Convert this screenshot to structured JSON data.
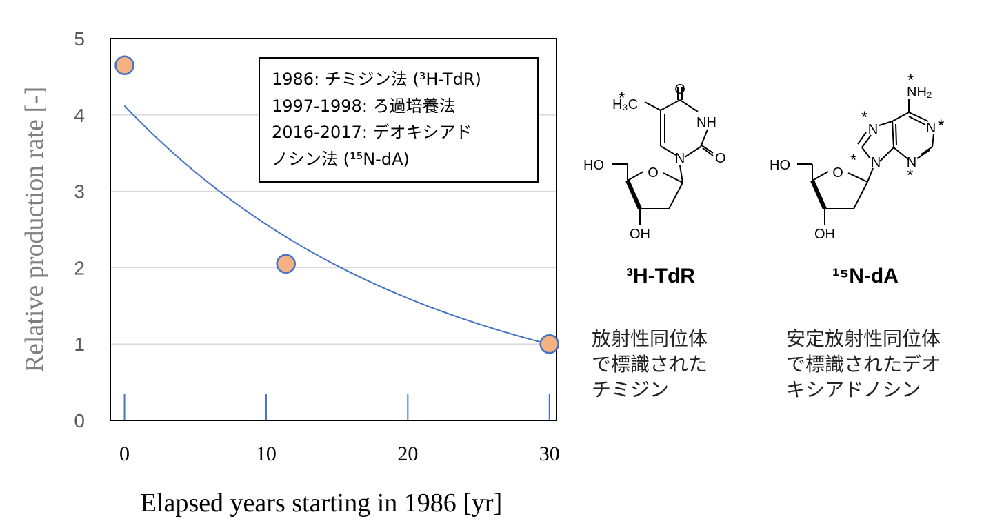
{
  "chart_data": {
    "type": "scatter",
    "xlabel": "Elapsed years starting in 1986 [yr]",
    "ylabel": "Relative production rate [-]",
    "xlim": [
      -1,
      30.5
    ],
    "ylim": [
      0,
      5
    ],
    "xticks": [
      "0",
      "10",
      "20",
      "30"
    ],
    "yticks": [
      "0",
      "1",
      "2",
      "3",
      "4",
      "5"
    ],
    "grid": "horizontal",
    "legend_position": "top-right",
    "series": [
      {
        "values": [
          [
            0,
            4.65
          ],
          [
            11.4,
            2.05
          ],
          [
            30,
            1.0
          ]
        ]
      }
    ],
    "trend": {
      "type": "exponential",
      "a": 4.12,
      "b": -0.0473,
      "x_range": [
        0,
        30
      ]
    },
    "legend_lines": [
      "1986: チミジン法 (³H-TdR)",
      "1997-1998:  ろ過培養法",
      "2016-2017:  デオキシアド",
      "ノシン法 (¹⁵N-dA)"
    ],
    "color_marker": "#F4B183",
    "color_marker_edge": "#4472C4",
    "color_line": "#4472C4"
  },
  "molecules": [
    {
      "name": "³H-TdR",
      "atoms": {
        "o_top": "O",
        "nh": "NH",
        "o_right": "O",
        "n": "N",
        "methyl": "H₃C",
        "ho": "HO",
        "ring_o": "O",
        "oh": "OH",
        "star": "*"
      },
      "description": [
        "放射性同位体",
        "で標識された",
        "チミジン"
      ]
    },
    {
      "name": "¹⁵N-dA",
      "atoms": {
        "nh2": "NH₂",
        "n1": "N",
        "n3": "N",
        "n7": "N",
        "n9": "N",
        "ho": "HO",
        "ring_o": "O",
        "oh": "OH",
        "star": "*"
      },
      "description": [
        "安定放射性同位体",
        "で標識されたデオ",
        "キシアドノシン"
      ]
    }
  ]
}
